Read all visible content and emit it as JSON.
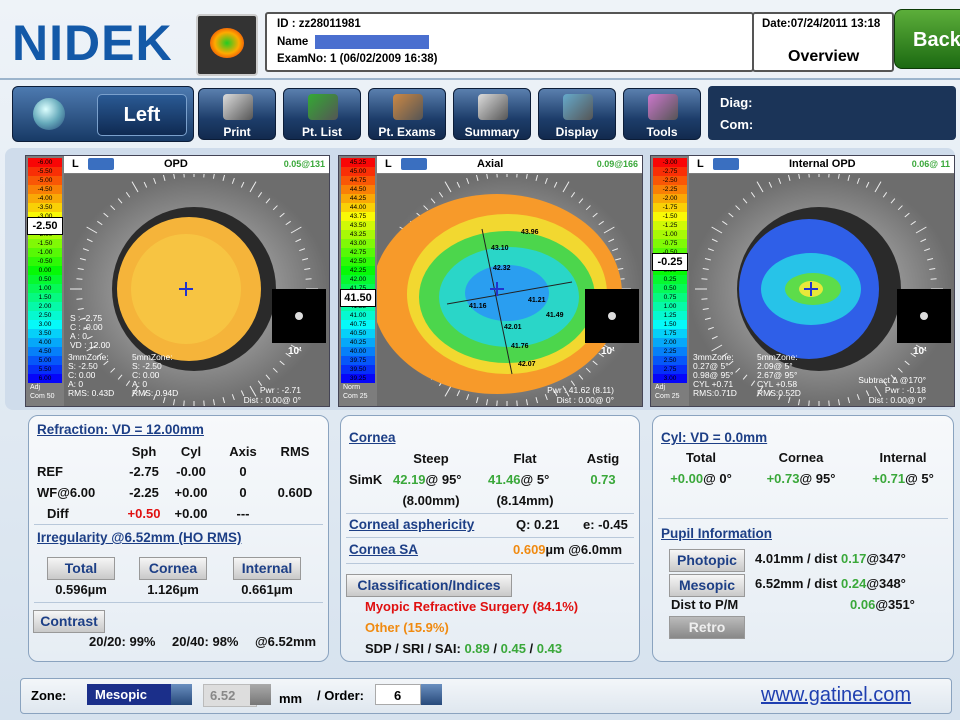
{
  "header": {
    "logo": "NIDEK",
    "id": "ID : zz28011981",
    "name": "Name",
    "exam": "ExamNo: 1 (06/02/2009 16:38)",
    "date": "Date:07/24/2011 13:18",
    "view": "Overview",
    "back": "Back"
  },
  "toolbar": {
    "side": "Left",
    "buttons": [
      "Print",
      "Pt. List",
      "Pt. Exams",
      "Summary",
      "Display",
      "Tools"
    ],
    "diag": "Diag:",
    "com": "Com:"
  },
  "maps": [
    {
      "eye": "L",
      "title": "OPD",
      "corner": "0.05@131",
      "scale": [
        "-6.00",
        "-5.50",
        "-5.00",
        "-4.50",
        "-4.00",
        "-3.50",
        "-3.00",
        {
          "label": "-2.50",
          "selected": true
        },
        "-2.00",
        "-1.50",
        "-1.00",
        "-0.50",
        "0.00",
        "0.50",
        "1.00",
        "1.50",
        "2.00",
        "2.50",
        "3.00",
        "3.50",
        "4.00",
        "4.50",
        "5.00",
        "5.50",
        "6.00"
      ],
      "scale_footer": [
        "Adj",
        "Com 50"
      ],
      "side_notes": [
        "S : -2.75",
        "C : -0.00",
        "A : 0",
        "VD : 12.00"
      ],
      "zone_notes": [
        [
          "3mmZone:",
          "S: -2.50",
          "C: 0.00",
          "A: 0",
          "RMS: 0.43D"
        ],
        [
          "5mmZone:",
          "S: -2.50",
          "C: 0.00",
          "A: 0",
          "RMS: 0.94D"
        ]
      ],
      "power_notes": [
        "Pwr : -2.71",
        "Dist : 0.00@ 0°"
      ],
      "scale_mark": "10'"
    },
    {
      "eye": "L",
      "title": "Axial",
      "corner": "0.09@166",
      "scale": [
        "45.25",
        "45.00",
        "44.75",
        "44.50",
        "44.25",
        "44.00",
        "43.75",
        "43.50",
        "43.25",
        "43.00",
        "42.75",
        "42.50",
        "42.25",
        "42.00",
        "41.75",
        {
          "label": "41.50",
          "selected": true
        },
        "41.25",
        "41.00",
        "40.75",
        "40.50",
        "40.25",
        "40.00",
        "39.75",
        "39.50",
        "39.25"
      ],
      "scale_footer": [
        "Norm",
        "Com 25"
      ],
      "point_labels": [
        "43.96",
        "43.10",
        "42.32",
        "41.16",
        "41.21",
        "41.49",
        "42.01",
        "41.76",
        "42.07"
      ],
      "power_notes": [
        "Pwr : 41.62 (8.11)",
        "Dist : 0.00@ 0°"
      ],
      "scale_mark": "10'"
    },
    {
      "eye": "L",
      "title": "Internal OPD",
      "corner": "0.06@ 11",
      "scale": [
        "-3.00",
        "-2.75",
        "-2.50",
        "-2.25",
        "-2.00",
        "-1.75",
        "-1.50",
        "-1.25",
        "-1.00",
        "-0.75",
        "-0.50",
        {
          "label": "-0.25",
          "selected": true
        },
        "0.00",
        "0.25",
        "0.50",
        "0.75",
        "1.00",
        "1.25",
        "1.50",
        "1.75",
        "2.00",
        "2.25",
        "2.50",
        "2.75",
        "3.00"
      ],
      "scale_footer": [
        "Adj",
        "Com 25"
      ],
      "zone_notes": [
        [
          "3mmZone:",
          "0.27@ 5°",
          "0.98@ 95°",
          "CYL +0.71",
          "RMS:0.71D"
        ],
        [
          "5mmZone:",
          "2.09@ 5°",
          "2.67@ 95°",
          "CYL +0.58",
          "RMS:0.52D"
        ]
      ],
      "power_notes": [
        "Subtract Δ @170°",
        "Pwr : -0.18",
        "Dist : 0.00@ 0°"
      ],
      "scale_mark": "10'"
    }
  ],
  "refraction": {
    "title": "Refraction: VD = 12.00mm",
    "headers": [
      "Sph",
      "Cyl",
      "Axis",
      "RMS"
    ],
    "rows": [
      [
        "REF",
        "-2.75",
        "-0.00",
        "0"
      ],
      [
        "WF@6.00",
        "-2.25",
        "+0.00",
        "0",
        "0.60D"
      ],
      [
        "Diff",
        "+0.50",
        "+0.00",
        "---"
      ]
    ],
    "irregularity_title": "Irregularity @6.52mm (HO RMS)",
    "irregularity_buttons": [
      "Total",
      "Cornea",
      "Internal"
    ],
    "irregularity_values": [
      "0.596µm",
      "1.126µm",
      "0.661µm"
    ],
    "contrast_button": "Contrast",
    "contrast": [
      "20/20: 99%",
      "20/40: 98%",
      "@6.52mm"
    ]
  },
  "cornea": {
    "title": "Cornea",
    "headers": [
      "Steep",
      "Flat",
      "Astig"
    ],
    "simk_label": "SimK",
    "steep": "42.19",
    "steep_axis": "@ 95°",
    "steep_mm": "(8.00mm)",
    "flat": "41.46",
    "flat_axis": "@  5°",
    "flat_mm": "(8.14mm)",
    "astig": "0.73",
    "asphericity_title": "Corneal asphericity",
    "q": "Q: 0.21",
    "e": "e: -0.45",
    "sa_title": "Cornea SA",
    "sa_value": "0.609",
    "sa_unit": "µm @6.0mm",
    "classification_button": "Classification/Indices",
    "class_1": "Myopic Refractive Surgery (84.1%)",
    "class_2": "Other (15.9%)",
    "indices_label": "SDP / SRI / SAI:",
    "indices": [
      "0.89",
      "0.45",
      "0.43"
    ]
  },
  "cyl": {
    "title": "Cyl: VD = 0.0mm",
    "headers": [
      "Total",
      "Cornea",
      "Internal"
    ],
    "values": [
      "+0.00",
      "+0.73",
      "+0.71"
    ],
    "axes": [
      "@  0°",
      "@ 95°",
      "@  5°"
    ],
    "pupil_title": "Pupil Information",
    "photopic_button": "Photopic",
    "photopic_text": "4.01mm / dist",
    "photopic_value": "0.17",
    "photopic_axis": "@347°",
    "mesopic_button": "Mesopic",
    "mesopic_text": "6.52mm / dist",
    "mesopic_value": "0.24",
    "mesopic_axis": "@348°",
    "dist_label": "Dist to P/M",
    "dist_value": "0.06",
    "dist_axis": "@351°",
    "retro_button": "Retro"
  },
  "footer": {
    "zone_label": "Zone:",
    "zone_value": "Mesopic",
    "size_value": "6.52",
    "size_unit": "mm",
    "order_label": "/ Order:",
    "order_value": "6",
    "website": "www.gatinel.com"
  }
}
